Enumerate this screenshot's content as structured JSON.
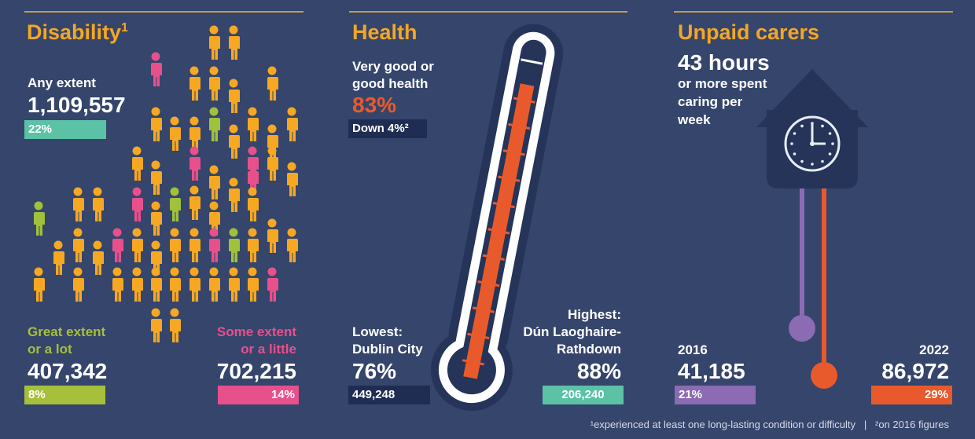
{
  "disability": {
    "title": "Disability",
    "title_sup": "1",
    "any_label": "Any extent",
    "any_value": "1,109,557",
    "any_pct": "22%",
    "great_label": [
      "Great extent",
      "or a lot"
    ],
    "great_value": "407,342",
    "great_pct": "8%",
    "some_label": [
      "Some extent",
      "or a little"
    ],
    "some_value": "702,215",
    "some_pct": "14%"
  },
  "health": {
    "title": "Health",
    "good_label": [
      "Very good or",
      "good health"
    ],
    "good_pct": "83%",
    "change": "Down 4%²",
    "lowest_label": [
      "Lowest:",
      "Dublin City"
    ],
    "lowest_pct": "76%",
    "lowest_count": "449,248",
    "highest_label": [
      "Highest:",
      "Dún Laoghaire-",
      "Rathdown"
    ],
    "highest_pct": "88%",
    "highest_count": "206,240"
  },
  "carers": {
    "title": "Unpaid carers",
    "hours": "43 hours",
    "hours_label": [
      "or more spent",
      "caring per",
      "week"
    ],
    "year_a": "2016",
    "value_a": "41,185",
    "pct_a": "21%",
    "year_b": "2022",
    "value_b": "86,972",
    "pct_b": "29%"
  },
  "footnote": "¹experienced at least one long-lasting condition or difficulty   |   ²on 2016 figures"
}
